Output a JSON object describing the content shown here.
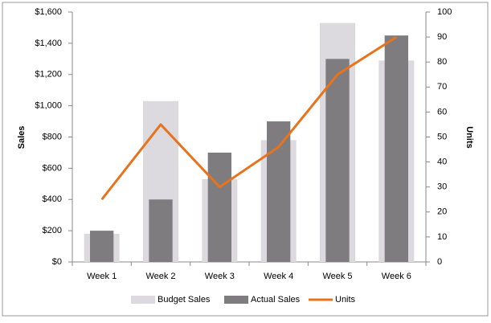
{
  "chart_data": {
    "type": "bar",
    "categories": [
      "Week 1",
      "Week 2",
      "Week 3",
      "Week 4",
      "Week 5",
      "Week 6"
    ],
    "series": [
      {
        "name": "Budget Sales",
        "type": "bar",
        "color": "#dcdadf",
        "values": [
          180,
          1030,
          530,
          780,
          1530,
          1290
        ]
      },
      {
        "name": "Actual Sales",
        "type": "bar",
        "color": "#7f7c80",
        "values": [
          200,
          400,
          700,
          900,
          1300,
          1450
        ]
      },
      {
        "name": "Units",
        "type": "line",
        "axis": "y2",
        "color": "#e8731c",
        "values": [
          25,
          55,
          30,
          46,
          75,
          90
        ]
      }
    ],
    "ylabel": "Sales",
    "y2label": "Units",
    "ylim": [
      0,
      1600
    ],
    "yticks": [
      {
        "value": 0,
        "label": "$0"
      },
      {
        "value": 200,
        "label": "$200"
      },
      {
        "value": 400,
        "label": "$400"
      },
      {
        "value": 600,
        "label": "$600"
      },
      {
        "value": 800,
        "label": "$800"
      },
      {
        "value": 1000,
        "label": "$1,000"
      },
      {
        "value": 1200,
        "label": "$1,200"
      },
      {
        "value": 1400,
        "label": "$1,400"
      },
      {
        "value": 1600,
        "label": "$1,600"
      }
    ],
    "y2lim": [
      0,
      100
    ],
    "y2ticks": [
      0,
      10,
      20,
      30,
      40,
      50,
      60,
      70,
      80,
      90,
      100
    ],
    "legend": "bottom"
  }
}
